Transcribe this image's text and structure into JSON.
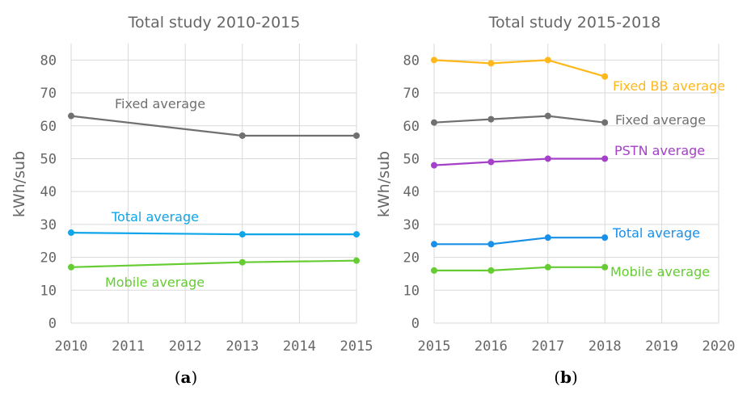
{
  "chart_data": [
    {
      "type": "line",
      "title": "Total study 2010-2015",
      "ylabel": "kWh/sub",
      "xlabel": "",
      "caption": "(a)",
      "caption_prefix": "(",
      "caption_letter": "a",
      "caption_suffix": ")",
      "xlim": [
        2010,
        2015
      ],
      "ylim": [
        0,
        85
      ],
      "x_ticks": [
        "2010",
        "2011",
        "2012",
        "2013",
        "2014",
        "2015"
      ],
      "y_ticks": [
        "0",
        "10",
        "20",
        "30",
        "40",
        "50",
        "60",
        "70",
        "80"
      ],
      "grid": true,
      "series": [
        {
          "name": "Fixed average",
          "color": "#707070",
          "x": [
            2010,
            2013,
            2015
          ],
          "values": [
            63,
            57,
            57
          ]
        },
        {
          "name": "Total average",
          "color": "#0ea5e9",
          "x": [
            2010,
            2013,
            2015
          ],
          "values": [
            27.5,
            27,
            27
          ]
        },
        {
          "name": "Mobile average",
          "color": "#66cc33",
          "x": [
            2010,
            2013,
            2015
          ],
          "values": [
            17,
            18.5,
            19
          ]
        }
      ]
    },
    {
      "type": "line",
      "title": "Total study 2015-2018",
      "ylabel": "kWh/sub",
      "xlabel": "",
      "caption": "(b)",
      "caption_prefix": "(",
      "caption_letter": "b",
      "caption_suffix": ")",
      "xlim": [
        2015,
        2020
      ],
      "ylim": [
        0,
        85
      ],
      "x_ticks": [
        "2015",
        "2016",
        "2017",
        "2018",
        "2019",
        "2020"
      ],
      "y_ticks": [
        "0",
        "10",
        "20",
        "30",
        "40",
        "50",
        "60",
        "70",
        "80"
      ],
      "grid": true,
      "series": [
        {
          "name": "Fixed BB average",
          "color": "#ffb81c",
          "x": [
            2015,
            2016,
            2017,
            2018
          ],
          "values": [
            80,
            79,
            80,
            75
          ]
        },
        {
          "name": "Fixed average",
          "color": "#707070",
          "x": [
            2015,
            2016,
            2017,
            2018
          ],
          "values": [
            61,
            62,
            63,
            61
          ]
        },
        {
          "name": "PSTN average",
          "color": "#a540c8",
          "x": [
            2015,
            2016,
            2017,
            2018
          ],
          "values": [
            48,
            49,
            50,
            50
          ]
        },
        {
          "name": "Total average",
          "color": "#1890e8",
          "x": [
            2015,
            2016,
            2017,
            2018
          ],
          "values": [
            24,
            24,
            26,
            26
          ]
        },
        {
          "name": "Mobile average",
          "color": "#66cc33",
          "x": [
            2015,
            2016,
            2017,
            2018
          ],
          "values": [
            16,
            16,
            17,
            17
          ]
        }
      ]
    }
  ]
}
